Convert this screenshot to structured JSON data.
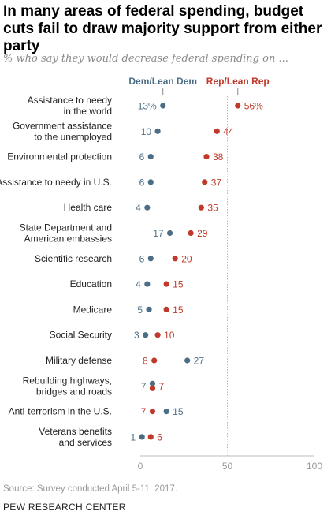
{
  "title": "In many areas of federal spending, budget cuts fail to draw majority support from either party",
  "subtitle": "% who say they would decrease federal spending on ...",
  "source": "Source: Survey conducted April 5-11, 2017.",
  "org": "PEW RESEARCH CENTER",
  "colors": {
    "dem": "#4b6e86",
    "rep": "#bf3a2b",
    "label": "#222222",
    "axis": "#999999"
  },
  "chart_data": {
    "type": "dot",
    "xlim": [
      0,
      100
    ],
    "x_ticks": [
      "0",
      "50",
      "100"
    ],
    "reference_line": 50,
    "series": [
      {
        "name": "Dem/Lean Dem",
        "key": "dem",
        "values": [
          13,
          10,
          6,
          6,
          4,
          17,
          6,
          4,
          5,
          3,
          27,
          7,
          15,
          1
        ],
        "first_label_suffix": "%"
      },
      {
        "name": "Rep/Lean Rep",
        "key": "rep",
        "values": [
          56,
          44,
          38,
          37,
          35,
          29,
          20,
          15,
          15,
          10,
          8,
          7,
          7,
          6
        ],
        "first_label_suffix": "%"
      }
    ],
    "categories": [
      [
        "Assistance to needy",
        "in the world"
      ],
      [
        "Government assistance",
        "to the unemployed"
      ],
      [
        "Environmental protection"
      ],
      [
        "Assistance to needy in U.S."
      ],
      [
        "Health care"
      ],
      [
        "State Department and",
        "American embassies"
      ],
      [
        "Scientific research"
      ],
      [
        "Education"
      ],
      [
        "Medicare"
      ],
      [
        "Social Security"
      ],
      [
        "Military defense"
      ],
      [
        "Rebuilding highways,",
        "bridges and roads"
      ],
      [
        "Anti-terrorism in the U.S."
      ],
      [
        "Veterans benefits",
        "and services"
      ]
    ]
  }
}
